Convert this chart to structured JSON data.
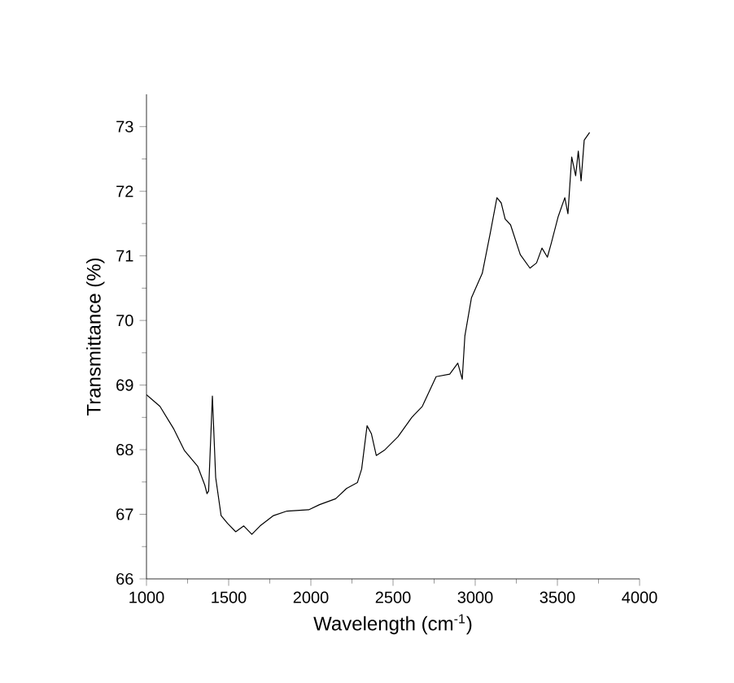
{
  "chart_data": {
    "type": "line",
    "xlabel": "Wavelength (cm$^{-1}$)",
    "ylabel": "Transmittance (%)",
    "xlim": [
      1000,
      4000
    ],
    "ylim": [
      66,
      73.5
    ],
    "xticks": [
      1000,
      1500,
      2000,
      2500,
      3000,
      3500,
      4000
    ],
    "yticks": [
      66,
      67,
      68,
      69,
      70,
      71,
      72,
      73
    ],
    "marker": "none",
    "line_style": "solid",
    "series": [
      {
        "color": "#000000",
        "x": [
          1000,
          1082,
          1164,
          1230,
          1312,
          1355,
          1368,
          1378,
          1401,
          1421,
          1454,
          1493,
          1543,
          1592,
          1641,
          1691,
          1773,
          1855,
          1987,
          2053,
          2151,
          2217,
          2283,
          2309,
          2342,
          2368,
          2398,
          2447,
          2530,
          2614,
          2678,
          2762,
          2845,
          2894,
          2921,
          2937,
          2977,
          3043,
          3092,
          3132,
          3158,
          3182,
          3215,
          3274,
          3333,
          3373,
          3406,
          3439,
          3462,
          3505,
          3545,
          3564,
          3587,
          3611,
          3627,
          3644,
          3663,
          3696
        ],
        "values": [
          68.85,
          68.67,
          68.33,
          67.99,
          67.74,
          67.45,
          67.32,
          67.36,
          68.83,
          67.57,
          66.98,
          66.86,
          66.73,
          66.82,
          66.69,
          66.82,
          66.98,
          67.05,
          67.07,
          67.15,
          67.24,
          67.4,
          67.49,
          67.7,
          68.37,
          68.25,
          67.91,
          67.99,
          68.2,
          68.5,
          68.67,
          69.13,
          69.17,
          69.34,
          69.09,
          69.76,
          70.35,
          70.73,
          71.36,
          71.9,
          71.82,
          71.57,
          71.48,
          71.02,
          70.81,
          70.89,
          71.12,
          70.98,
          71.19,
          71.61,
          71.9,
          71.65,
          72.53,
          72.24,
          72.62,
          72.16,
          72.79,
          72.91
        ]
      }
    ]
  }
}
